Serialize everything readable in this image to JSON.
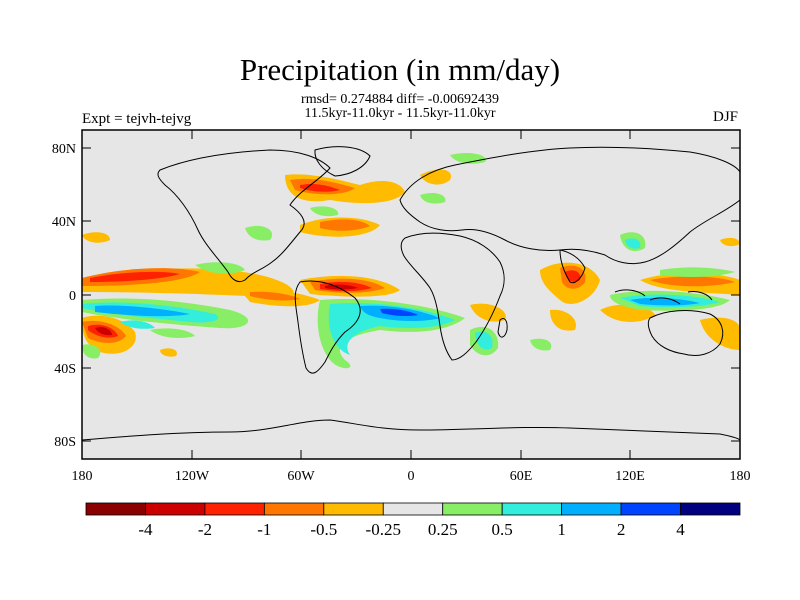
{
  "title": "Precipitation (in mm/day)",
  "stats_line": "rmsd= 0.274884 diff= -0.00692439",
  "period_line": "11.5kyr-11.0kyr - 11.5kyr-11.0kyr",
  "experiment": "Expt = tejvh-tejvg",
  "season": "DJF",
  "lat_labels": [
    "80N",
    "40N",
    "0",
    "40S",
    "80S"
  ],
  "lat_values": [
    80,
    40,
    0,
    -40,
    -80
  ],
  "lon_labels": [
    "180",
    "120W",
    "60W",
    "0",
    "60E",
    "120E",
    "180"
  ],
  "lon_values": [
    -180,
    -120,
    -60,
    0,
    60,
    120,
    180
  ],
  "colorbar": {
    "colors": [
      "#8b0000",
      "#cc0000",
      "#ff2200",
      "#ff7700",
      "#ffbb00",
      "#e6e6e6",
      "#88ee66",
      "#33eedd",
      "#00b0ff",
      "#0044ff",
      "#000080"
    ],
    "labels": [
      "-4",
      "-2",
      "-1",
      "-0.5",
      "-0.25",
      "0.25",
      "0.5",
      "1",
      "2",
      "4"
    ]
  },
  "colors": {
    "neutral": "#e6e6e6",
    "coast": "#000000"
  }
}
